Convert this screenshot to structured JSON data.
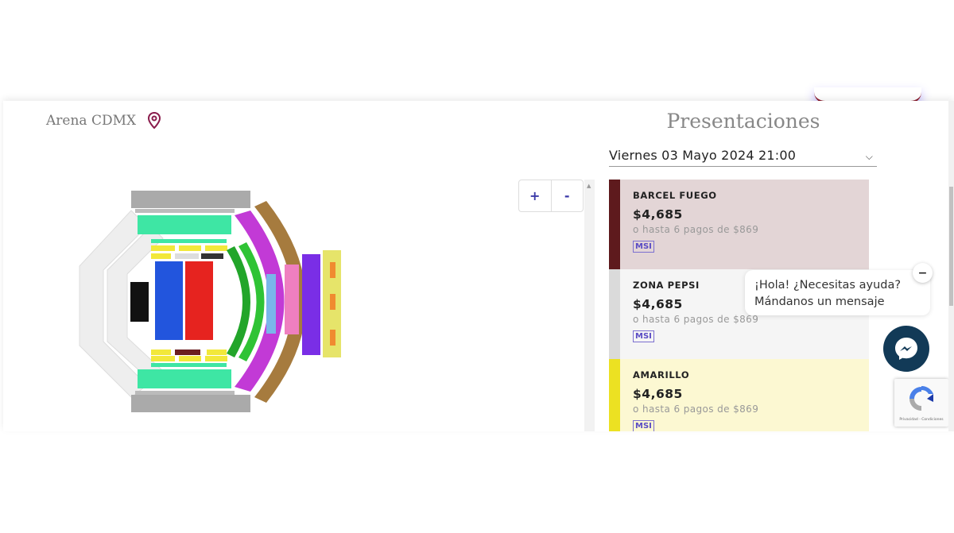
{
  "venue": {
    "name": "Arena CDMX",
    "icon": "location-pin-icon"
  },
  "presentations": {
    "title": "Presentaciones",
    "selected_date": "Viernes 03 Mayo 2024 21:00"
  },
  "map_controls": {
    "zoom_in": "+",
    "zoom_out": "-"
  },
  "zones": [
    {
      "name": "BARCEL FUEGO",
      "price": "$4,685",
      "installments": "o hasta 6 pagos de $869",
      "badge": "MSI",
      "color": "#5e1a1d",
      "bg": "#e3d5d6"
    },
    {
      "name": "ZONA PEPSI",
      "price": "$4,685",
      "installments": "o hasta 6 pagos de $869",
      "badge": "MSI",
      "color": "#dadada",
      "bg": "#f5f5f5"
    },
    {
      "name": "AMARILLO",
      "price": "$4,685",
      "installments": "o hasta 6 pagos de $869",
      "badge": "MSI",
      "color": "#ece122",
      "bg": "#fcf8d2"
    }
  ],
  "chat": {
    "line1": "¡Hola! ¿Necesitas ayuda?",
    "line2": "Mándanos un mensaje",
    "minimize": "−"
  },
  "recaptcha": {
    "text": "Privacidad - Condiciones"
  }
}
